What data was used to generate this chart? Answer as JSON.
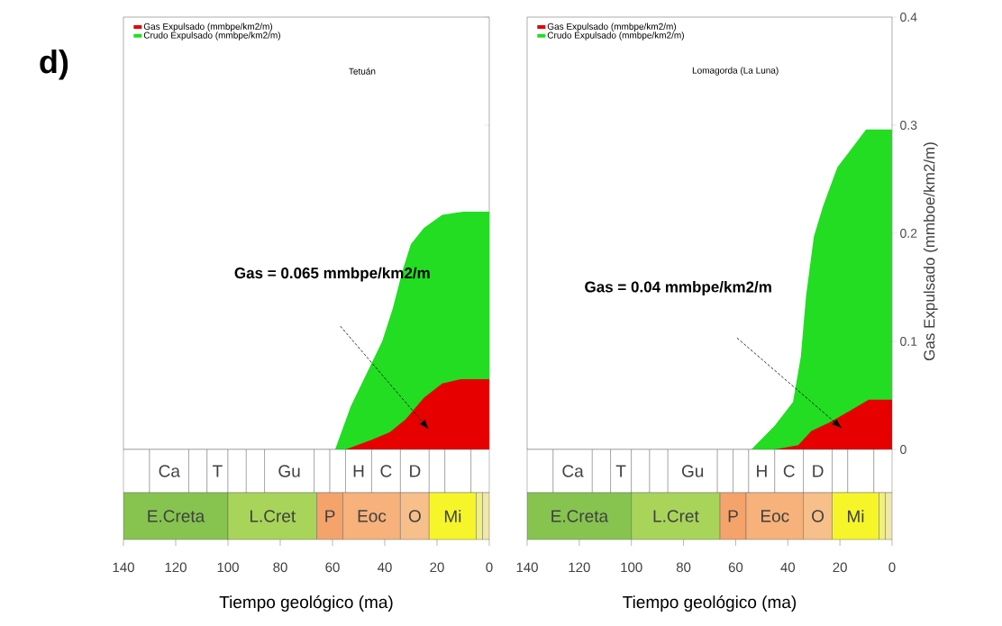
{
  "chart_data": [
    {
      "type": "area",
      "title": "Tetuán",
      "xlabel": "Tiempo geológico (ma)",
      "xlim": [
        140,
        0
      ],
      "y2lim": [
        0,
        0.4
      ],
      "xticks": [
        140,
        120,
        100,
        80,
        60,
        40,
        20,
        0
      ],
      "y2ticks": [
        0,
        0.1,
        0.2,
        0.3,
        0.4
      ],
      "tick_labels": "x",
      "legend": "top left",
      "annotations": [
        "d)",
        "Gas = 0.065 mmbpe/km2/m",
        "Ca",
        "T",
        "Gu",
        "H",
        "C",
        "D",
        "E.Creta",
        "L.Cret",
        "P",
        "Eoc",
        "O",
        "Mi"
      ],
      "series": [
        {
          "name": "Gas Expulsado (mmbpe/km2/m)",
          "color": "#e60000",
          "axis": "y2",
          "x": [
            55,
            45,
            38,
            32,
            25,
            18,
            11,
            0
          ],
          "values": [
            0,
            0.009,
            0.016,
            0.028,
            0.048,
            0.061,
            0.065,
            0.065
          ]
        },
        {
          "name": "Crudo Expulsado (mmbpe/km2/m)",
          "color": "#22dd22",
          "axis": "y2",
          "x": [
            59,
            53,
            47,
            41,
            37,
            33,
            30,
            25,
            18,
            10,
            0
          ],
          "values": [
            0,
            0.04,
            0.07,
            0.1,
            0.13,
            0.167,
            0.19,
            0.205,
            0.217,
            0.22,
            0.22
          ]
        }
      ]
    },
    {
      "type": "area",
      "title": "Lomagorda (La Luna)",
      "xlabel": "Tiempo geológico (ma)",
      "y2label": "Gas Expulsado (mmboe/km2/m)",
      "xlim": [
        140,
        0
      ],
      "y2lim": [
        0,
        0.4
      ],
      "xticks": [
        140,
        120,
        100,
        80,
        60,
        40,
        20,
        0
      ],
      "y2ticks": [
        0,
        0.1,
        0.2,
        0.3,
        0.4
      ],
      "legend": "top left",
      "annotations": [
        "Gas = 0.04 mmbpe/km2/m",
        "Ca",
        "T",
        "Gu",
        "H",
        "C",
        "D",
        "E.Creta",
        "L.Cret",
        "P",
        "Eoc",
        "O",
        "Mi"
      ],
      "series": [
        {
          "name": "Gas Expulsado (mmbpe/km2/m)",
          "color": "#e60000",
          "axis": "y2",
          "x": [
            45,
            36,
            31,
            24,
            16,
            9,
            0
          ],
          "values": [
            0,
            0.004,
            0.017,
            0.025,
            0.036,
            0.046,
            0.046
          ]
        },
        {
          "name": "Crudo Expulsado (mmbpe/km2/m)",
          "color": "#22dd22",
          "axis": "y2",
          "x": [
            54,
            45,
            38,
            35,
            33,
            30,
            26.5,
            21,
            15,
            10,
            0
          ],
          "values": [
            0,
            0.022,
            0.044,
            0.086,
            0.142,
            0.197,
            0.225,
            0.261,
            0.28,
            0.296,
            0.296
          ]
        }
      ]
    }
  ]
}
